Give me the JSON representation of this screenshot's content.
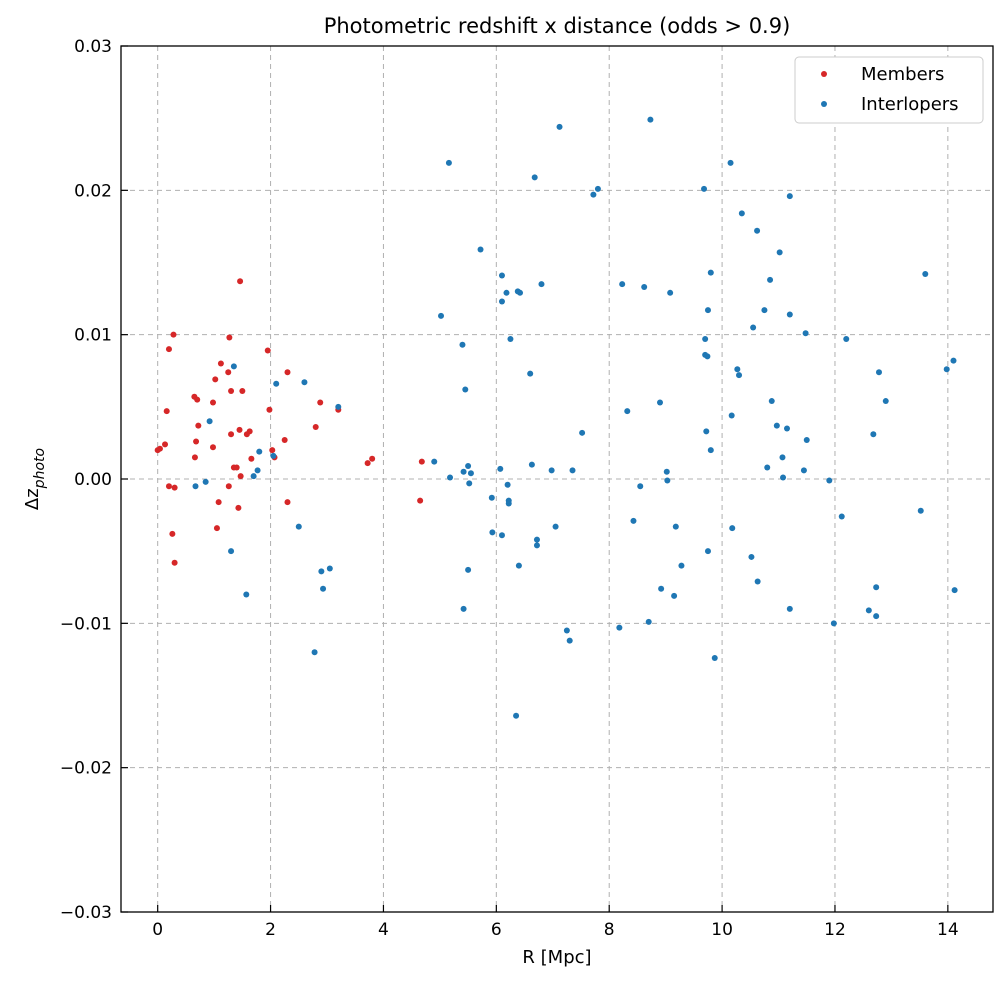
{
  "chart_data": {
    "type": "scatter",
    "title": "Photometric redshift x distance (odds > 0.9)",
    "xlabel": "R [Mpc]",
    "ylabel_main": "Δz",
    "ylabel_sub": "photo",
    "xlim": [
      -0.65,
      14.8
    ],
    "ylim": [
      -0.03,
      0.03
    ],
    "x_ticks": [
      0,
      2,
      4,
      6,
      8,
      10,
      12,
      14
    ],
    "x_tick_labels": [
      "0",
      "2",
      "4",
      "6",
      "8",
      "10",
      "12",
      "14"
    ],
    "y_ticks": [
      -0.03,
      -0.02,
      -0.01,
      0.0,
      0.01,
      0.02,
      0.03
    ],
    "y_tick_labels": [
      "−0.03",
      "−0.02",
      "−0.01",
      "0.00",
      "0.01",
      "0.02",
      "0.03"
    ],
    "grid": true,
    "legend_position": "top-right",
    "series": [
      {
        "name": "Members",
        "color": "#d62728",
        "points": [
          [
            0.04,
            0.0021
          ],
          [
            0.0,
            0.002
          ],
          [
            0.13,
            0.0024
          ],
          [
            0.16,
            0.0047
          ],
          [
            0.2,
            0.009
          ],
          [
            0.28,
            0.01
          ],
          [
            0.2,
            -0.0005
          ],
          [
            0.3,
            -0.0006
          ],
          [
            0.26,
            -0.0038
          ],
          [
            0.3,
            -0.0058
          ],
          [
            0.65,
            0.0057
          ],
          [
            0.7,
            0.0055
          ],
          [
            0.68,
            0.0026
          ],
          [
            0.72,
            0.0037
          ],
          [
            0.66,
            0.0015
          ],
          [
            0.98,
            0.0053
          ],
          [
            1.02,
            0.0069
          ],
          [
            1.12,
            0.008
          ],
          [
            1.25,
            0.0074
          ],
          [
            1.27,
            0.0098
          ],
          [
            1.3,
            0.0061
          ],
          [
            0.98,
            0.0022
          ],
          [
            1.08,
            -0.0016
          ],
          [
            1.05,
            -0.0034
          ],
          [
            1.26,
            -0.0005
          ],
          [
            1.3,
            0.0031
          ],
          [
            1.35,
            0.0008
          ],
          [
            1.4,
            0.0008
          ],
          [
            1.45,
            0.0034
          ],
          [
            1.5,
            0.0061
          ],
          [
            1.46,
            0.0137
          ],
          [
            1.47,
            0.0002
          ],
          [
            1.43,
            -0.002
          ],
          [
            1.58,
            0.0031
          ],
          [
            1.63,
            0.0033
          ],
          [
            1.66,
            0.0014
          ],
          [
            1.95,
            0.0089
          ],
          [
            1.98,
            0.0048
          ],
          [
            2.03,
            0.002
          ],
          [
            2.07,
            0.0015
          ],
          [
            2.25,
            0.0027
          ],
          [
            2.3,
            0.0074
          ],
          [
            2.3,
            -0.0016
          ],
          [
            2.8,
            0.0036
          ],
          [
            2.88,
            0.0053
          ],
          [
            3.2,
            0.0048
          ],
          [
            3.72,
            0.0011
          ],
          [
            3.8,
            0.0014
          ],
          [
            4.68,
            0.0012
          ],
          [
            4.65,
            -0.0015
          ]
        ]
      },
      {
        "name": "Interlopers",
        "color": "#1f77b4",
        "points": [
          [
            0.67,
            -0.0005
          ],
          [
            0.85,
            -0.0002
          ],
          [
            0.92,
            0.004
          ],
          [
            1.35,
            0.0078
          ],
          [
            1.3,
            -0.005
          ],
          [
            1.57,
            -0.008
          ],
          [
            1.7,
            0.0002
          ],
          [
            1.77,
            0.0006
          ],
          [
            1.8,
            0.0019
          ],
          [
            2.05,
            0.0016
          ],
          [
            2.1,
            0.0066
          ],
          [
            2.5,
            -0.0033
          ],
          [
            2.6,
            0.0067
          ],
          [
            2.78,
            -0.012
          ],
          [
            2.9,
            -0.0064
          ],
          [
            2.93,
            -0.0076
          ],
          [
            3.05,
            -0.0062
          ],
          [
            3.2,
            0.005
          ],
          [
            4.9,
            0.0012
          ],
          [
            5.02,
            0.0113
          ],
          [
            5.16,
            0.0219
          ],
          [
            5.18,
            0.0001
          ],
          [
            5.4,
            0.0093
          ],
          [
            5.42,
            0.0005
          ],
          [
            5.45,
            0.0062
          ],
          [
            5.42,
            -0.009
          ],
          [
            5.5,
            0.0009
          ],
          [
            5.52,
            -0.0003
          ],
          [
            5.55,
            0.0004
          ],
          [
            5.5,
            -0.0063
          ],
          [
            5.72,
            0.0159
          ],
          [
            5.92,
            -0.0013
          ],
          [
            5.93,
            -0.0037
          ],
          [
            6.07,
            0.0007
          ],
          [
            6.1,
            0.0123
          ],
          [
            6.1,
            0.0141
          ],
          [
            6.1,
            -0.0039
          ],
          [
            6.18,
            0.0129
          ],
          [
            6.2,
            -0.0004
          ],
          [
            6.22,
            -0.0015
          ],
          [
            6.25,
            0.0097
          ],
          [
            6.22,
            -0.0017
          ],
          [
            6.35,
            -0.0164
          ],
          [
            6.38,
            0.013
          ],
          [
            6.42,
            0.0129
          ],
          [
            6.4,
            -0.006
          ],
          [
            6.6,
            0.0073
          ],
          [
            6.63,
            0.001
          ],
          [
            6.68,
            0.0209
          ],
          [
            6.72,
            -0.0042
          ],
          [
            6.72,
            -0.0046
          ],
          [
            6.8,
            0.0135
          ],
          [
            6.98,
            0.0006
          ],
          [
            7.05,
            -0.0033
          ],
          [
            7.12,
            0.0244
          ],
          [
            7.25,
            -0.0105
          ],
          [
            7.3,
            -0.0112
          ],
          [
            7.35,
            0.0006
          ],
          [
            7.52,
            0.0032
          ],
          [
            7.72,
            0.0197
          ],
          [
            7.8,
            0.0201
          ],
          [
            8.18,
            -0.0103
          ],
          [
            8.23,
            0.0135
          ],
          [
            8.32,
            0.0047
          ],
          [
            8.43,
            -0.0029
          ],
          [
            8.55,
            -0.0005
          ],
          [
            8.62,
            0.0133
          ],
          [
            8.7,
            -0.0099
          ],
          [
            8.73,
            0.0249
          ],
          [
            8.9,
            0.0053
          ],
          [
            8.92,
            -0.0076
          ],
          [
            9.02,
            0.0005
          ],
          [
            9.03,
            -0.0001
          ],
          [
            9.08,
            0.0129
          ],
          [
            9.15,
            -0.0081
          ],
          [
            9.18,
            -0.0033
          ],
          [
            9.28,
            -0.006
          ],
          [
            9.68,
            0.0201
          ],
          [
            9.7,
            0.0097
          ],
          [
            9.7,
            0.0086
          ],
          [
            9.72,
            0.0033
          ],
          [
            9.75,
            0.0117
          ],
          [
            9.74,
            0.0085
          ],
          [
            9.75,
            -0.005
          ],
          [
            9.8,
            0.0143
          ],
          [
            9.8,
            0.002
          ],
          [
            9.87,
            -0.0124
          ],
          [
            10.15,
            0.0219
          ],
          [
            10.17,
            0.0044
          ],
          [
            10.18,
            -0.0034
          ],
          [
            10.27,
            0.0076
          ],
          [
            10.3,
            0.0072
          ],
          [
            10.35,
            0.0184
          ],
          [
            10.52,
            -0.0054
          ],
          [
            10.55,
            0.0105
          ],
          [
            10.62,
            0.0172
          ],
          [
            10.63,
            -0.0071
          ],
          [
            10.75,
            0.0117
          ],
          [
            10.8,
            0.0008
          ],
          [
            10.85,
            0.0138
          ],
          [
            10.88,
            0.0054
          ],
          [
            10.97,
            0.0037
          ],
          [
            11.02,
            0.0157
          ],
          [
            11.07,
            0.0015
          ],
          [
            11.08,
            0.0001
          ],
          [
            11.15,
            0.0035
          ],
          [
            11.2,
            0.0114
          ],
          [
            11.2,
            0.0196
          ],
          [
            11.2,
            -0.009
          ],
          [
            11.45,
            0.0006
          ],
          [
            11.48,
            0.0101
          ],
          [
            11.5,
            0.0027
          ],
          [
            11.9,
            -0.0001
          ],
          [
            11.98,
            -0.01
          ],
          [
            12.12,
            -0.0026
          ],
          [
            12.2,
            0.0097
          ],
          [
            12.6,
            -0.0091
          ],
          [
            12.68,
            0.0031
          ],
          [
            12.73,
            -0.0075
          ],
          [
            12.73,
            -0.0095
          ],
          [
            12.78,
            0.0074
          ],
          [
            12.9,
            0.0054
          ],
          [
            13.52,
            -0.0022
          ],
          [
            13.6,
            0.0142
          ],
          [
            13.98,
            0.0076
          ],
          [
            14.1,
            0.0082
          ],
          [
            14.12,
            -0.0077
          ]
        ]
      }
    ]
  }
}
